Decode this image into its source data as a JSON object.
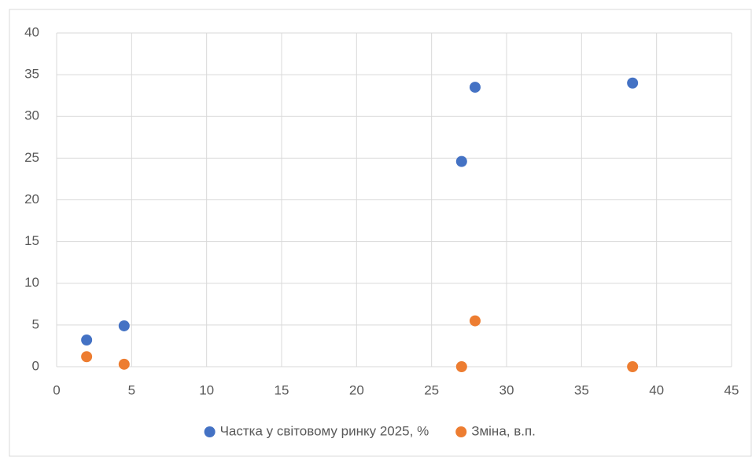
{
  "chart_data": {
    "type": "scatter",
    "series": [
      {
        "name": "Частка у світовому ринку 2025, %",
        "color": "#4472c4",
        "x": [
          2.0,
          4.5,
          27.0,
          27.9,
          38.4
        ],
        "values": [
          3.2,
          4.9,
          24.6,
          33.5,
          34.0
        ]
      },
      {
        "name": "Зміна, в.п.",
        "color": "#ed7d31",
        "x": [
          2.0,
          4.5,
          27.0,
          27.9,
          38.4
        ],
        "values": [
          1.2,
          0.3,
          0.0,
          5.5,
          0.0
        ]
      }
    ],
    "xlim": [
      0,
      45
    ],
    "xticks": [
      0,
      5,
      10,
      15,
      20,
      25,
      30,
      35,
      40,
      45
    ],
    "ylim": [
      0,
      40
    ],
    "yticks": [
      0,
      5,
      10,
      15,
      20,
      25,
      30,
      35,
      40
    ],
    "grid": true,
    "legend": "bottom"
  }
}
